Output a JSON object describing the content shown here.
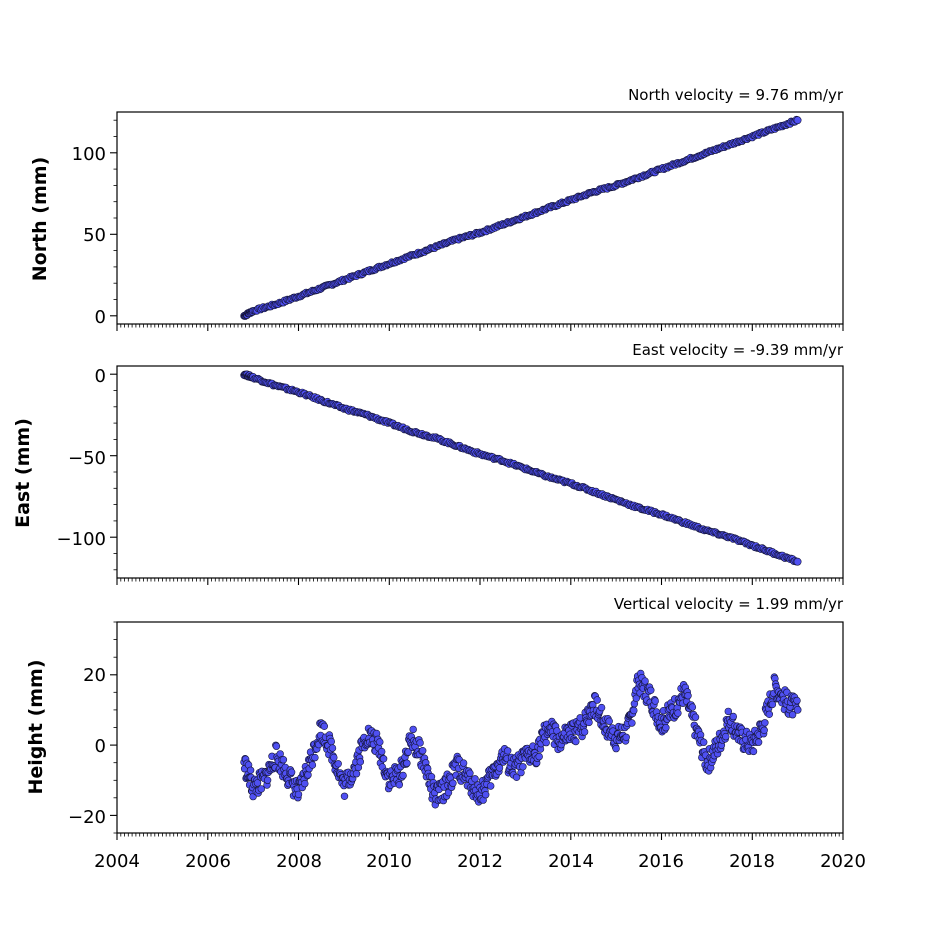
{
  "chart_data": [
    {
      "type": "scatter",
      "title": "North velocity = 9.76 mm/yr",
      "xlabel": "",
      "ylabel": "North (mm)",
      "xlim": [
        2004,
        2020
      ],
      "ylim": [
        -5,
        125
      ],
      "yticks": [
        0,
        50,
        100
      ],
      "ytick_labels": [
        "0",
        "50",
        "100"
      ],
      "xticks": [
        2004,
        2006,
        2008,
        2010,
        2012,
        2014,
        2016,
        2018,
        2020
      ],
      "xtick_labels": [
        "",
        "",
        "",
        "",
        "",
        "",
        "",
        "",
        ""
      ],
      "series": [
        {
          "x": [
            2006.8,
            2007.0,
            2007.5,
            2008.0,
            2008.5,
            2009.0,
            2009.5,
            2010.0,
            2010.5,
            2011.0,
            2011.5,
            2012.0,
            2012.5,
            2013.0,
            2013.5,
            2014.0,
            2014.5,
            2015.0,
            2015.5,
            2016.0,
            2016.5,
            2017.0,
            2017.5,
            2018.0,
            2018.5,
            2019.0
          ],
          "y": [
            0,
            3,
            7,
            12,
            17,
            22,
            27,
            32,
            37,
            42,
            47,
            51,
            56,
            61,
            66,
            71,
            76,
            80,
            85,
            90,
            95,
            100,
            105,
            110,
            115,
            120
          ]
        }
      ],
      "grid": false
    },
    {
      "type": "scatter",
      "title": "East velocity = -9.39 mm/yr",
      "xlabel": "",
      "ylabel": "East (mm)",
      "xlim": [
        2004,
        2020
      ],
      "ylim": [
        -125,
        5
      ],
      "yticks": [
        0,
        -50,
        -100
      ],
      "ytick_labels": [
        "0",
        "−50",
        "−100"
      ],
      "xticks": [
        2004,
        2006,
        2008,
        2010,
        2012,
        2014,
        2016,
        2018,
        2020
      ],
      "xtick_labels": [
        "",
        "",
        "",
        "",
        "",
        "",
        "",
        "",
        ""
      ],
      "series": [
        {
          "x": [
            2006.8,
            2007.0,
            2007.5,
            2008.0,
            2008.5,
            2009.0,
            2009.5,
            2010.0,
            2010.5,
            2011.0,
            2011.5,
            2012.0,
            2012.5,
            2013.0,
            2013.5,
            2014.0,
            2014.5,
            2015.0,
            2015.5,
            2016.0,
            2016.5,
            2017.0,
            2017.5,
            2018.0,
            2018.5,
            2019.0
          ],
          "y": [
            0,
            -2,
            -7,
            -11,
            -16,
            -21,
            -25,
            -30,
            -35,
            -39,
            -44,
            -49,
            -53,
            -58,
            -63,
            -67,
            -72,
            -77,
            -82,
            -86,
            -91,
            -96,
            -100,
            -105,
            -110,
            -115
          ]
        }
      ],
      "grid": false
    },
    {
      "type": "scatter",
      "title": "Vertical velocity = 1.99 mm/yr",
      "xlabel": "",
      "ylabel": "Height (mm)",
      "xlim": [
        2004,
        2020
      ],
      "ylim": [
        -25,
        35
      ],
      "yticks": [
        20,
        0,
        -20
      ],
      "ytick_labels": [
        "20",
        "0",
        "−20"
      ],
      "xticks": [
        2004,
        2006,
        2008,
        2010,
        2012,
        2014,
        2016,
        2018,
        2020
      ],
      "xtick_labels": [
        "2004",
        "2006",
        "2008",
        "2010",
        "2012",
        "2014",
        "2016",
        "2018",
        "2020"
      ],
      "series": [
        {
          "x": [
            2006.8,
            2007.0,
            2007.25,
            2007.5,
            2007.75,
            2008.0,
            2008.25,
            2008.5,
            2008.75,
            2009.0,
            2009.25,
            2009.5,
            2009.75,
            2010.0,
            2010.25,
            2010.5,
            2010.75,
            2011.0,
            2011.25,
            2011.5,
            2011.75,
            2012.0,
            2012.25,
            2012.5,
            2012.75,
            2013.0,
            2013.25,
            2013.5,
            2013.75,
            2014.0,
            2014.25,
            2014.5,
            2014.75,
            2015.0,
            2015.25,
            2015.5,
            2015.75,
            2016.0,
            2016.25,
            2016.5,
            2016.75,
            2017.0,
            2017.25,
            2017.5,
            2017.75,
            2018.0,
            2018.25,
            2018.5,
            2018.75,
            2019.0
          ],
          "y": [
            -5,
            -12,
            -10,
            -3,
            -8,
            -14,
            -5,
            5,
            -2,
            -12,
            -6,
            3,
            0,
            -10,
            -8,
            2,
            -4,
            -15,
            -12,
            -6,
            -10,
            -14,
            -9,
            -3,
            -7,
            -4,
            -2,
            5,
            1,
            3,
            5,
            12,
            6,
            2,
            4,
            18,
            14,
            6,
            10,
            15,
            5,
            -5,
            0,
            8,
            2,
            0,
            6,
            17,
            12,
            10
          ]
        }
      ],
      "grid": false
    }
  ]
}
